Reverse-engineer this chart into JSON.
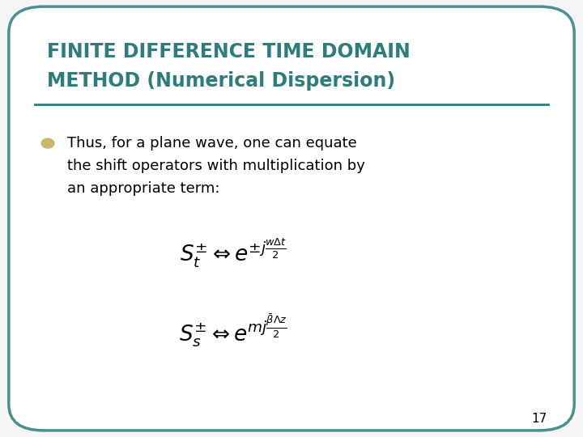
{
  "title_line1": "FINITE DIFFERENCE TIME DOMAIN",
  "title_line2": "METHOD (Numerical Dispersion)",
  "title_color": "#2e7d7d",
  "body_line1": "Thus, for a plane wave, one can equate",
  "body_line2": "the shift operators with multiplication by",
  "body_line3": "an appropriate term:",
  "bullet_color": "#c8b96e",
  "bg_color": "#f5f5f5",
  "border_color": "#4a9090",
  "separator_color": "#2e7d7d",
  "page_number": "17",
  "formula1": "$S_t^{\\pm} \\Leftrightarrow e^{\\pm j\\frac{w\\Delta t}{2}}$",
  "formula2": "$S_s^{\\pm} \\Leftrightarrow e^{mj\\frac{\\bar{\\beta}\\Lambda z}{2}}$"
}
